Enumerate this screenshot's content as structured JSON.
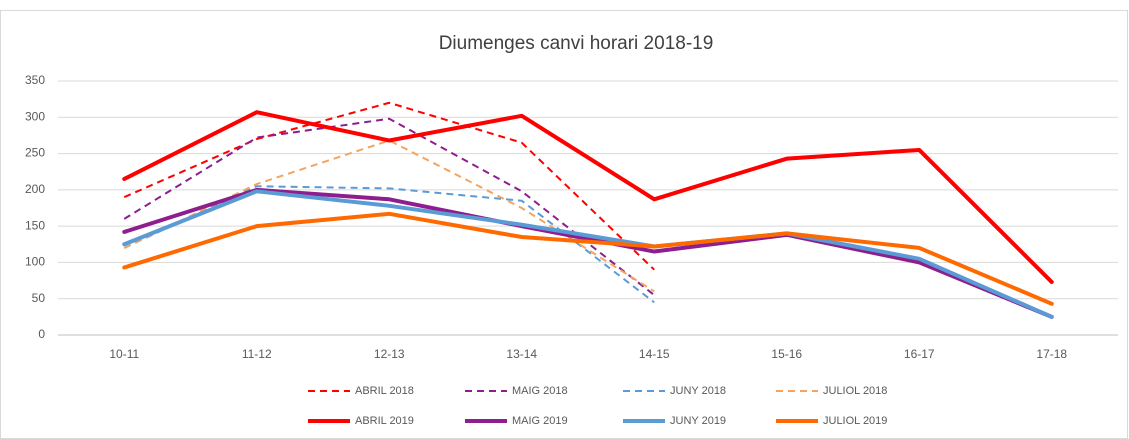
{
  "chart_data": {
    "type": "line",
    "title": "Diumenges canvi horari 2018-19",
    "categories": [
      "10-11",
      "11-12",
      "12-13",
      "13-14",
      "14-15",
      "15-16",
      "16-17",
      "17-18"
    ],
    "ylim": [
      0,
      350
    ],
    "yticks": [
      0,
      50,
      100,
      150,
      200,
      250,
      300,
      350
    ],
    "grid": true,
    "series": [
      {
        "name": "ABRIL 2018",
        "color": "#ff0000",
        "dashed": true,
        "values": [
          190,
          270,
          320,
          265,
          90,
          null,
          null,
          null
        ]
      },
      {
        "name": "MAIG 2018",
        "color": "#8e1e8e",
        "dashed": true,
        "values": [
          160,
          272,
          298,
          198,
          55,
          null,
          null,
          null
        ]
      },
      {
        "name": "JUNY 2018",
        "color": "#5b9bd5",
        "dashed": true,
        "values": [
          120,
          205,
          202,
          185,
          45,
          null,
          null,
          null
        ]
      },
      {
        "name": "JULIOL 2018",
        "color": "#f4a460",
        "dashed": true,
        "values": [
          120,
          208,
          268,
          175,
          60,
          null,
          null,
          null
        ]
      },
      {
        "name": "ABRIL 2019",
        "color": "#ff0000",
        "dashed": false,
        "values": [
          215,
          307,
          268,
          302,
          187,
          243,
          255,
          73
        ]
      },
      {
        "name": "MAIG 2019",
        "color": "#8e1e8e",
        "dashed": false,
        "values": [
          142,
          200,
          187,
          150,
          115,
          138,
          100,
          25
        ]
      },
      {
        "name": "JUNY 2019",
        "color": "#5b9bd5",
        "dashed": false,
        "values": [
          125,
          198,
          178,
          152,
          122,
          140,
          105,
          25
        ]
      },
      {
        "name": "JULIOL 2019",
        "color": "#ff6a00",
        "dashed": false,
        "values": [
          93,
          150,
          167,
          135,
          122,
          140,
          120,
          43
        ]
      }
    ]
  }
}
